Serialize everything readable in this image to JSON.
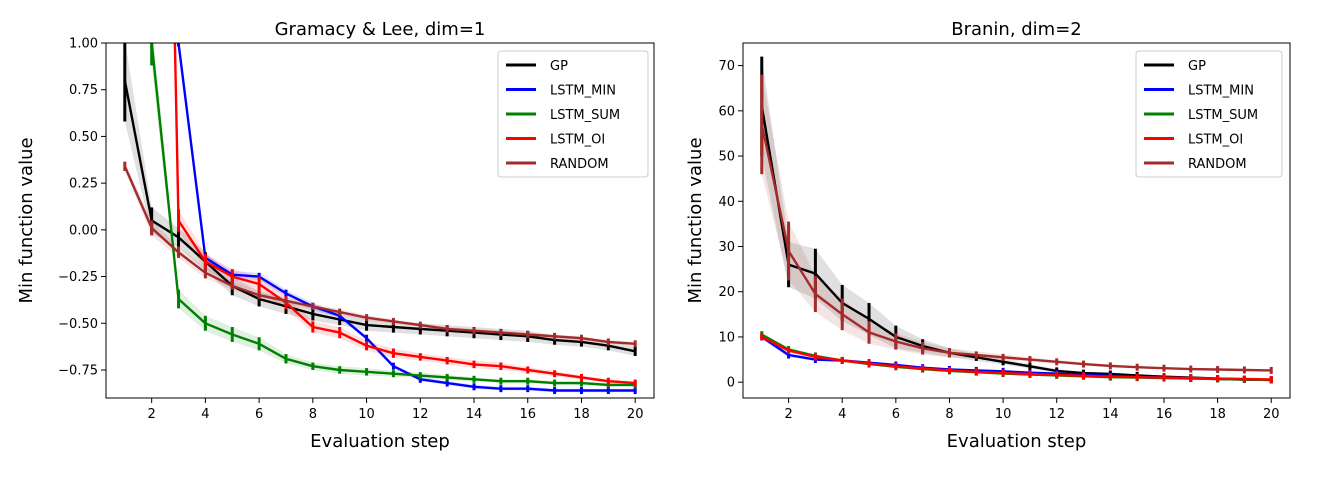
{
  "chart_data": [
    {
      "type": "line",
      "title": "Gramacy & Lee, dim=1",
      "xlabel": "Evaluation step",
      "ylabel": "Min function value",
      "xlim": [
        0.3,
        20.7
      ],
      "ylim": [
        -0.9,
        1.0
      ],
      "xticks": [
        2,
        4,
        6,
        8,
        10,
        12,
        14,
        16,
        18,
        20
      ],
      "yticks": [
        -0.75,
        -0.5,
        -0.25,
        0.0,
        0.25,
        0.5,
        0.75,
        1.0
      ],
      "ytick_labels": [
        "−0.75",
        "−0.50",
        "−0.25",
        "0.00",
        "0.25",
        "0.50",
        "0.75",
        "1.00"
      ],
      "legend_position": "top-right",
      "x": [
        1,
        2,
        3,
        4,
        5,
        6,
        7,
        8,
        9,
        10,
        11,
        12,
        13,
        14,
        15,
        16,
        17,
        18,
        19,
        20
      ],
      "series": [
        {
          "name": "GP",
          "color": "#000000",
          "values": [
            0.8,
            0.05,
            -0.04,
            -0.17,
            -0.3,
            -0.37,
            -0.41,
            -0.45,
            -0.48,
            -0.51,
            -0.52,
            -0.53,
            -0.54,
            -0.55,
            -0.56,
            -0.57,
            -0.59,
            -0.6,
            -0.62,
            -0.65
          ],
          "err": [
            0.22,
            0.07,
            0.05,
            0.05,
            0.05,
            0.04,
            0.04,
            0.035,
            0.03,
            0.03,
            0.03,
            0.03,
            0.03,
            0.03,
            0.03,
            0.03,
            0.025,
            0.025,
            0.025,
            0.025
          ]
        },
        {
          "name": "LSTM_MIN",
          "color": "#0000ff",
          "values": [
            null,
            null,
            1.0,
            -0.15,
            -0.24,
            -0.25,
            -0.34,
            -0.41,
            -0.46,
            -0.58,
            -0.73,
            -0.8,
            -0.82,
            -0.84,
            -0.85,
            -0.85,
            -0.86,
            -0.86,
            -0.86,
            -0.86
          ],
          "err": [
            0,
            0,
            0,
            0.02,
            0.02,
            0.02,
            0.02,
            0.02,
            0.01,
            0.01,
            0.01,
            0.01,
            0.01,
            0.01,
            0.01,
            0.01,
            0.01,
            0.01,
            0.01,
            0.01
          ]
        },
        {
          "name": "LSTM_SUM",
          "color": "#008000",
          "values": [
            null,
            1.0,
            -0.37,
            -0.5,
            -0.56,
            -0.61,
            -0.69,
            -0.73,
            -0.75,
            -0.76,
            -0.77,
            -0.78,
            -0.79,
            -0.8,
            -0.81,
            -0.81,
            -0.82,
            -0.82,
            -0.83,
            -0.83
          ],
          "err": [
            0,
            0.12,
            0.05,
            0.04,
            0.04,
            0.035,
            0.025,
            0.02,
            0.02,
            0.02,
            0.015,
            0.015,
            0.015,
            0.01,
            0.01,
            0.01,
            0.01,
            0.01,
            0.01,
            0.01
          ]
        },
        {
          "name": "LSTM_OI",
          "color": "#ff0000",
          "values": [
            null,
            null,
            0.05,
            -0.17,
            -0.25,
            -0.29,
            -0.39,
            -0.52,
            -0.55,
            -0.62,
            -0.66,
            -0.68,
            -0.7,
            -0.72,
            -0.73,
            -0.75,
            -0.77,
            -0.79,
            -0.81,
            -0.82
          ],
          "err": [
            0,
            0,
            0.06,
            0.04,
            0.04,
            0.04,
            0.035,
            0.03,
            0.03,
            0.025,
            0.025,
            0.02,
            0.02,
            0.02,
            0.02,
            0.015,
            0.015,
            0.01,
            0.01,
            0.01
          ]
        },
        {
          "name": "RANDOM",
          "color": "#a52a2a",
          "values": [
            0.34,
            0.01,
            -0.12,
            -0.23,
            -0.3,
            -0.35,
            -0.38,
            -0.41,
            -0.44,
            -0.47,
            -0.49,
            -0.51,
            -0.53,
            -0.54,
            -0.55,
            -0.56,
            -0.57,
            -0.58,
            -0.6,
            -0.61
          ],
          "err": [
            0.025,
            0.04,
            0.03,
            0.03,
            0.02,
            0.02,
            0.02,
            0.015,
            0.015,
            0.015,
            0.01,
            0.01,
            0.01,
            0.01,
            0.01,
            0.01,
            0.01,
            0.01,
            0.01,
            0.01
          ]
        }
      ]
    },
    {
      "type": "line",
      "title": "Branin, dim=2",
      "xlabel": "Evaluation step",
      "ylabel": "Min function value",
      "xlim": [
        0.3,
        20.7
      ],
      "ylim": [
        -3.5,
        75
      ],
      "xticks": [
        2,
        4,
        6,
        8,
        10,
        12,
        14,
        16,
        18,
        20
      ],
      "yticks": [
        0,
        10,
        20,
        30,
        40,
        50,
        60,
        70
      ],
      "ytick_labels": [
        "0",
        "10",
        "20",
        "30",
        "40",
        "50",
        "60",
        "70"
      ],
      "legend_position": "top-right",
      "x": [
        1,
        2,
        3,
        4,
        5,
        6,
        7,
        8,
        9,
        10,
        11,
        12,
        13,
        14,
        15,
        16,
        17,
        18,
        19,
        20
      ],
      "series": [
        {
          "name": "GP",
          "color": "#000000",
          "values": [
            61,
            26,
            24,
            17.5,
            14,
            10,
            8,
            6.5,
            5.5,
            4.5,
            3.5,
            2.5,
            2,
            1.8,
            1.5,
            1.2,
            1,
            0.8,
            0.6,
            0.5
          ],
          "err": [
            11,
            5,
            5.5,
            4,
            3.5,
            2.5,
            1.5,
            1,
            0.8,
            0.6,
            0.5,
            0.4,
            0.3,
            0.3,
            0.2,
            0.2,
            0.2,
            0.1,
            0.1,
            0.1
          ]
        },
        {
          "name": "LSTM_MIN",
          "color": "#0000ff",
          "values": [
            10,
            6,
            5,
            4.8,
            4.3,
            3.8,
            3.2,
            2.8,
            2.6,
            2.4,
            2.1,
            1.9,
            1.6,
            1.4,
            1.2,
            1,
            0.9,
            0.7,
            0.6,
            0.5
          ],
          "err": [
            0.5,
            0.5,
            0.3,
            0.3,
            0.2,
            0.2,
            0.2,
            0.2,
            0.1,
            0.1,
            0.1,
            0.1,
            0.1,
            0.1,
            0.1,
            0.1,
            0.1,
            0.1,
            0.1,
            0.1
          ]
        },
        {
          "name": "LSTM_SUM",
          "color": "#008000",
          "values": [
            10.5,
            7.2,
            5.8,
            4.8,
            4,
            3.4,
            2.9,
            2.5,
            2.2,
            1.9,
            1.7,
            1.5,
            1.3,
            1.1,
            1,
            0.9,
            0.8,
            0.7,
            0.6,
            0.5
          ],
          "err": [
            0.5,
            0.5,
            0.3,
            0.3,
            0.2,
            0.2,
            0.2,
            0.2,
            0.1,
            0.1,
            0.1,
            0.1,
            0.1,
            0.1,
            0.1,
            0.1,
            0.1,
            0.1,
            0.1,
            0.1
          ]
        },
        {
          "name": "LSTM_OI",
          "color": "#ff0000",
          "values": [
            10,
            7,
            5.6,
            4.8,
            4.1,
            3.5,
            3,
            2.6,
            2.3,
            2,
            1.8,
            1.6,
            1.4,
            1.2,
            1.1,
            1,
            0.9,
            0.8,
            0.7,
            0.6
          ],
          "err": [
            0.5,
            0.5,
            0.3,
            0.3,
            0.2,
            0.2,
            0.2,
            0.2,
            0.1,
            0.1,
            0.1,
            0.1,
            0.1,
            0.1,
            0.1,
            0.1,
            0.1,
            0.1,
            0.1,
            0.1
          ]
        },
        {
          "name": "RANDOM",
          "color": "#a52a2a",
          "values": [
            57,
            29,
            19.5,
            15,
            11,
            9,
            7.5,
            6.5,
            6,
            5.5,
            5,
            4.5,
            4,
            3.6,
            3.3,
            3.1,
            2.9,
            2.8,
            2.7,
            2.6
          ],
          "err": [
            11,
            6.5,
            4,
            3.5,
            2.5,
            1.8,
            1.4,
            1,
            0.8,
            0.6,
            0.5,
            0.4,
            0.3,
            0.3,
            0.2,
            0.2,
            0.2,
            0.2,
            0.2,
            0.2
          ]
        }
      ]
    }
  ]
}
